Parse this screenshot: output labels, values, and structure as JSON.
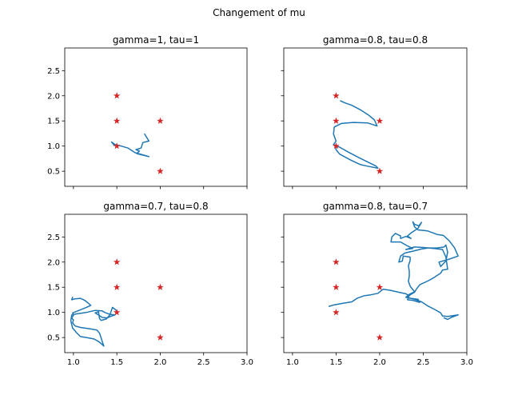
{
  "figure_title": "Changement of mu",
  "colors": {
    "path": "#1f77b4",
    "marker": "#d62728",
    "axes": "#000000"
  },
  "chart_data": [
    {
      "type": "line",
      "title": "gamma=1, tau=1",
      "xlim": [
        0.9,
        3.0
      ],
      "ylim": [
        0.2,
        2.95
      ],
      "xticks": [
        1.0,
        1.5,
        2.0,
        2.5,
        3.0
      ],
      "yticks": [
        0.5,
        1.0,
        1.5,
        2.0,
        2.5
      ],
      "show_xticklabels": false,
      "show_yticklabels": true,
      "grid": false,
      "markers": [
        [
          1.5,
          2.0
        ],
        [
          1.5,
          1.5
        ],
        [
          2.0,
          1.5
        ],
        [
          1.5,
          1.0
        ],
        [
          2.0,
          0.5
        ]
      ],
      "path": [
        [
          1.82,
          1.24
        ],
        [
          1.87,
          1.1
        ],
        [
          1.8,
          1.07
        ],
        [
          1.78,
          0.96
        ],
        [
          1.72,
          0.93
        ],
        [
          1.76,
          0.9
        ],
        [
          1.73,
          0.85
        ],
        [
          1.87,
          0.79
        ],
        [
          1.71,
          0.87
        ],
        [
          1.63,
          0.96
        ],
        [
          1.55,
          1.0
        ],
        [
          1.48,
          1.03
        ],
        [
          1.44,
          1.08
        ],
        [
          1.47,
          1.01
        ]
      ]
    },
    {
      "type": "line",
      "title": "gamma=0.8, tau=0.8",
      "xlim": [
        0.9,
        3.0
      ],
      "ylim": [
        0.2,
        2.95
      ],
      "xticks": [
        1.0,
        1.5,
        2.0,
        2.5,
        3.0
      ],
      "yticks": [
        0.5,
        1.0,
        1.5,
        2.0,
        2.5
      ],
      "show_xticklabels": false,
      "show_yticklabels": false,
      "grid": false,
      "markers": [
        [
          1.5,
          2.0
        ],
        [
          1.5,
          1.5
        ],
        [
          2.0,
          1.5
        ],
        [
          1.5,
          1.0
        ],
        [
          2.0,
          0.5
        ]
      ],
      "path": [
        [
          1.55,
          1.9
        ],
        [
          1.6,
          1.86
        ],
        [
          1.68,
          1.81
        ],
        [
          1.78,
          1.72
        ],
        [
          1.87,
          1.62
        ],
        [
          1.94,
          1.52
        ],
        [
          1.97,
          1.4
        ],
        [
          1.86,
          1.46
        ],
        [
          1.7,
          1.47
        ],
        [
          1.56,
          1.45
        ],
        [
          1.48,
          1.38
        ],
        [
          1.47,
          1.24
        ],
        [
          1.5,
          1.1
        ],
        [
          1.47,
          1.03
        ],
        [
          1.55,
          0.97
        ],
        [
          1.64,
          0.88
        ],
        [
          1.76,
          0.77
        ],
        [
          1.89,
          0.66
        ],
        [
          1.96,
          0.6
        ],
        [
          1.98,
          0.56
        ],
        [
          1.86,
          0.6
        ],
        [
          1.78,
          0.63
        ],
        [
          1.67,
          0.72
        ],
        [
          1.54,
          0.84
        ],
        [
          1.5,
          0.93
        ],
        [
          1.49,
          1.01
        ]
      ]
    },
    {
      "type": "line",
      "title": "gamma=0.7, tau=0.8",
      "xlim": [
        0.9,
        3.0
      ],
      "ylim": [
        0.2,
        2.95
      ],
      "xticks": [
        1.0,
        1.5,
        2.0,
        2.5,
        3.0
      ],
      "yticks": [
        0.5,
        1.0,
        1.5,
        2.0,
        2.5
      ],
      "show_xticklabels": true,
      "show_yticklabels": true,
      "grid": false,
      "markers": [
        [
          1.5,
          2.0
        ],
        [
          1.5,
          1.5
        ],
        [
          2.0,
          1.5
        ],
        [
          1.5,
          1.0
        ],
        [
          2.0,
          0.5
        ]
      ],
      "path": [
        [
          0.99,
          1.3
        ],
        [
          0.98,
          1.25
        ],
        [
          1.02,
          1.27
        ],
        [
          1.08,
          1.28
        ],
        [
          1.13,
          1.24
        ],
        [
          1.16,
          1.2
        ],
        [
          1.2,
          1.14
        ],
        [
          1.15,
          1.1
        ],
        [
          1.05,
          1.03
        ],
        [
          0.99,
          0.99
        ],
        [
          1.0,
          0.94
        ],
        [
          0.98,
          0.89
        ],
        [
          1.0,
          0.85
        ],
        [
          0.99,
          0.79
        ],
        [
          1.02,
          0.73
        ],
        [
          1.08,
          0.7
        ],
        [
          1.2,
          0.67
        ],
        [
          1.27,
          0.65
        ],
        [
          1.3,
          0.59
        ],
        [
          1.32,
          0.49
        ],
        [
          1.33,
          0.43
        ],
        [
          1.35,
          0.33
        ],
        [
          1.3,
          0.41
        ],
        [
          1.24,
          0.47
        ],
        [
          1.15,
          0.5
        ],
        [
          1.08,
          0.52
        ],
        [
          1.04,
          0.59
        ],
        [
          0.99,
          0.69
        ],
        [
          0.97,
          0.83
        ],
        [
          0.98,
          0.95
        ],
        [
          1.03,
          0.97
        ],
        [
          1.15,
          1.0
        ],
        [
          1.25,
          1.04
        ],
        [
          1.33,
          1.03
        ],
        [
          1.36,
          1.0
        ],
        [
          1.42,
          0.96
        ],
        [
          1.48,
          0.95
        ],
        [
          1.43,
          0.92
        ],
        [
          1.39,
          0.89
        ],
        [
          1.33,
          0.9
        ],
        [
          1.29,
          0.95
        ],
        [
          1.25,
          0.99
        ],
        [
          1.29,
          1.01
        ],
        [
          1.3,
          0.88
        ],
        [
          1.32,
          0.84
        ],
        [
          1.38,
          0.87
        ],
        [
          1.42,
          0.95
        ],
        [
          1.45,
          1.1
        ],
        [
          1.48,
          1.06
        ],
        [
          1.5,
          1.03
        ]
      ]
    },
    {
      "type": "line",
      "title": "gamma=0.8, tau=0.7",
      "xlim": [
        0.9,
        3.0
      ],
      "ylim": [
        0.2,
        2.95
      ],
      "xticks": [
        1.0,
        1.5,
        2.0,
        2.5,
        3.0
      ],
      "yticks": [
        0.5,
        1.0,
        1.5,
        2.0,
        2.5
      ],
      "show_xticklabels": true,
      "show_yticklabels": false,
      "grid": false,
      "markers": [
        [
          1.5,
          2.0
        ],
        [
          1.5,
          1.5
        ],
        [
          2.0,
          1.5
        ],
        [
          1.5,
          1.0
        ],
        [
          2.0,
          0.5
        ]
      ],
      "path": [
        [
          1.42,
          1.12
        ],
        [
          1.48,
          1.15
        ],
        [
          1.58,
          1.18
        ],
        [
          1.68,
          1.21
        ],
        [
          1.74,
          1.28
        ],
        [
          1.82,
          1.33
        ],
        [
          1.9,
          1.35
        ],
        [
          1.98,
          1.38
        ],
        [
          2.04,
          1.46
        ],
        [
          2.12,
          1.44
        ],
        [
          2.22,
          1.4
        ],
        [
          2.3,
          1.37
        ],
        [
          2.34,
          1.33
        ],
        [
          2.32,
          1.25
        ],
        [
          2.38,
          1.24
        ],
        [
          2.46,
          1.2
        ],
        [
          2.44,
          1.26
        ],
        [
          2.36,
          1.28
        ],
        [
          2.3,
          1.3
        ],
        [
          2.34,
          1.36
        ],
        [
          2.4,
          1.41
        ],
        [
          2.35,
          1.52
        ],
        [
          2.33,
          1.62
        ],
        [
          2.34,
          1.72
        ],
        [
          2.34,
          1.82
        ],
        [
          2.33,
          1.93
        ],
        [
          2.35,
          2.03
        ],
        [
          2.35,
          2.1
        ],
        [
          2.27,
          2.12
        ],
        [
          2.26,
          2.02
        ],
        [
          2.22,
          2.0
        ],
        [
          2.24,
          2.12
        ],
        [
          2.29,
          2.18
        ],
        [
          2.39,
          2.22
        ],
        [
          2.48,
          2.26
        ],
        [
          2.56,
          2.28
        ],
        [
          2.66,
          2.28
        ],
        [
          2.74,
          2.3
        ],
        [
          2.76,
          2.34
        ],
        [
          2.78,
          2.2
        ],
        [
          2.76,
          2.02
        ],
        [
          2.72,
          1.95
        ],
        [
          2.7,
          1.91
        ],
        [
          2.68,
          2.0
        ],
        [
          2.8,
          2.06
        ],
        [
          2.9,
          2.12
        ],
        [
          2.86,
          2.28
        ],
        [
          2.8,
          2.42
        ],
        [
          2.73,
          2.53
        ],
        [
          2.66,
          2.55
        ],
        [
          2.55,
          2.62
        ],
        [
          2.44,
          2.64
        ],
        [
          2.4,
          2.7
        ],
        [
          2.38,
          2.8
        ],
        [
          2.4,
          2.75
        ],
        [
          2.45,
          2.72
        ],
        [
          2.48,
          2.79
        ],
        [
          2.44,
          2.67
        ],
        [
          2.36,
          2.58
        ],
        [
          2.32,
          2.52
        ],
        [
          2.36,
          2.47
        ],
        [
          2.3,
          2.51
        ],
        [
          2.24,
          2.47
        ],
        [
          2.24,
          2.52
        ],
        [
          2.18,
          2.57
        ],
        [
          2.14,
          2.5
        ],
        [
          2.13,
          2.4
        ],
        [
          2.24,
          2.4
        ],
        [
          2.32,
          2.32
        ],
        [
          2.38,
          2.27
        ],
        [
          2.3,
          2.25
        ],
        [
          2.4,
          2.3
        ],
        [
          2.5,
          2.29
        ],
        [
          2.62,
          2.27
        ],
        [
          2.72,
          2.25
        ],
        [
          2.76,
          2.1
        ],
        [
          2.78,
          1.86
        ],
        [
          2.72,
          1.84
        ],
        [
          2.7,
          1.78
        ],
        [
          2.62,
          1.69
        ],
        [
          2.56,
          1.63
        ],
        [
          2.46,
          1.55
        ],
        [
          2.42,
          1.46
        ],
        [
          2.4,
          1.4
        ],
        [
          2.3,
          1.3
        ],
        [
          2.4,
          1.26
        ],
        [
          2.48,
          1.21
        ],
        [
          2.56,
          1.12
        ],
        [
          2.64,
          1.05
        ],
        [
          2.7,
          0.99
        ],
        [
          2.72,
          0.93
        ],
        [
          2.78,
          0.92
        ],
        [
          2.82,
          0.93
        ],
        [
          2.9,
          0.95
        ],
        [
          2.82,
          0.9
        ],
        [
          2.78,
          0.86
        ],
        [
          2.74,
          0.89
        ]
      ]
    }
  ]
}
